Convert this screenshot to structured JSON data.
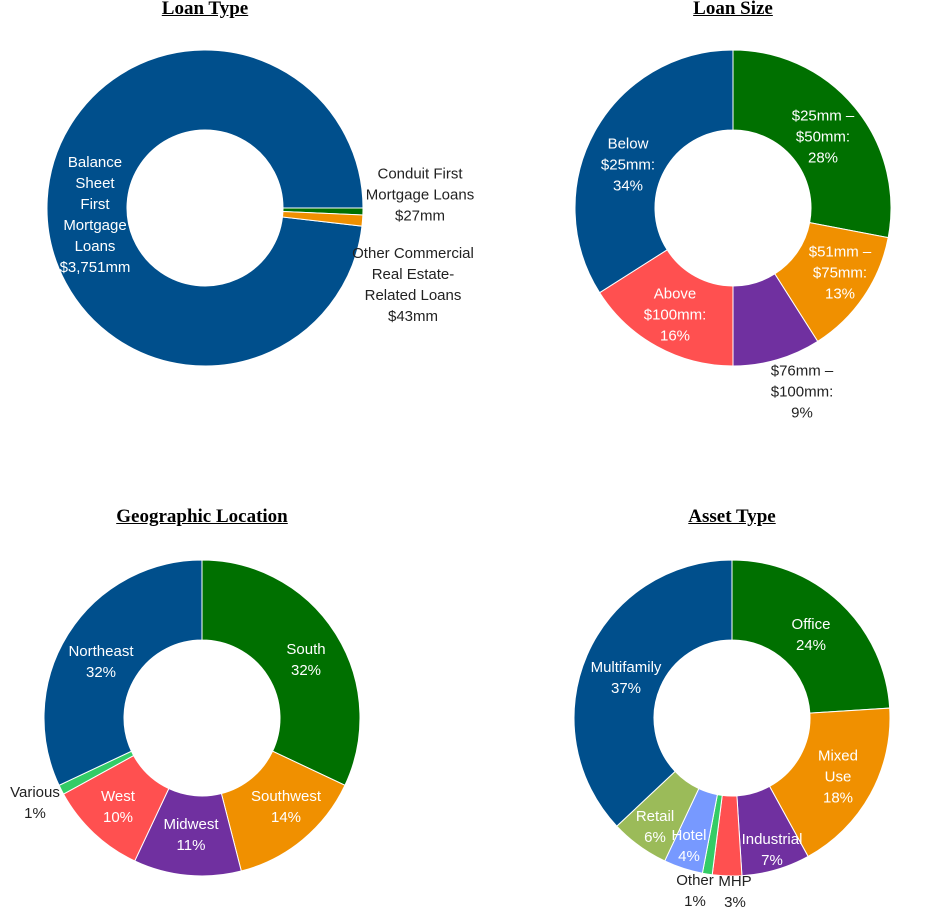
{
  "chart_data": [
    {
      "type": "donut",
      "title": "Loan Type",
      "categories": [
        "Balance Sheet First Mortgage Loans",
        "Conduit First Mortgage Loans",
        "Other Commercial Real Estate-Related Loans"
      ],
      "values": [
        3751,
        27,
        43
      ],
      "value_labels": [
        "$3,751mm",
        "$27mm",
        "$43mm"
      ],
      "colors": [
        "#004f8c",
        "#007000",
        "#f09000"
      ]
    },
    {
      "type": "donut",
      "title": "Loan Size",
      "categories": [
        "$25mm – $50mm:",
        "$51mm – $75mm:",
        "$76mm – $100mm:",
        "Above $100mm:",
        "Below $25mm:"
      ],
      "values": [
        28,
        13,
        9,
        16,
        34
      ],
      "value_labels": [
        "28%",
        "13%",
        "9%",
        "16%",
        "34%"
      ],
      "colors": [
        "#007000",
        "#f09000",
        "#7030a0",
        "#ff5050",
        "#004f8c"
      ]
    },
    {
      "type": "donut",
      "title": "Geographic Location",
      "categories": [
        "South",
        "Southwest",
        "Midwest",
        "West",
        "Various",
        "Northeast"
      ],
      "values": [
        32,
        14,
        11,
        10,
        1,
        32
      ],
      "value_labels": [
        "32%",
        "14%",
        "11%",
        "10%",
        "1%",
        "32%"
      ],
      "colors": [
        "#007000",
        "#f09000",
        "#7030a0",
        "#ff5050",
        "#33cc66",
        "#004f8c"
      ]
    },
    {
      "type": "donut",
      "title": "Asset Type",
      "categories": [
        "Office",
        "Mixed Use",
        "Industrial",
        "MHP",
        "Other",
        "Hotel",
        "Retail",
        "Multifamily"
      ],
      "values": [
        24,
        18,
        7,
        3,
        1,
        4,
        6,
        37
      ],
      "value_labels": [
        "24%",
        "18%",
        "7%",
        "3%",
        "1%",
        "4%",
        "6%",
        "37%"
      ],
      "colors": [
        "#007000",
        "#f09000",
        "#7030a0",
        "#ff5050",
        "#33cc66",
        "#7799ff",
        "#9bbb59",
        "#004f8c"
      ]
    }
  ]
}
